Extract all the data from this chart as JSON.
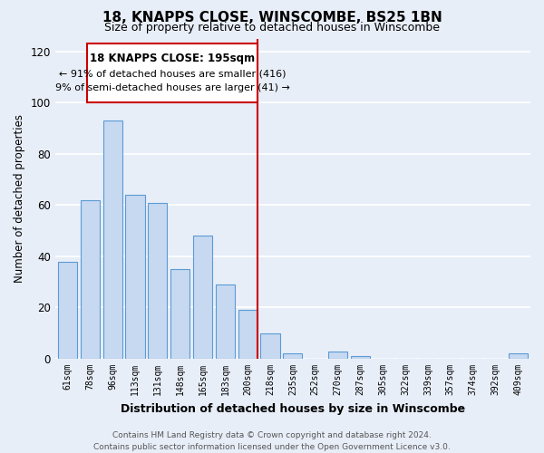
{
  "title": "18, KNAPPS CLOSE, WINSCOMBE, BS25 1BN",
  "subtitle": "Size of property relative to detached houses in Winscombe",
  "xlabel": "Distribution of detached houses by size in Winscombe",
  "ylabel": "Number of detached properties",
  "bar_labels": [
    "61sqm",
    "78sqm",
    "96sqm",
    "113sqm",
    "131sqm",
    "148sqm",
    "165sqm",
    "183sqm",
    "200sqm",
    "218sqm",
    "235sqm",
    "252sqm",
    "270sqm",
    "287sqm",
    "305sqm",
    "322sqm",
    "339sqm",
    "357sqm",
    "374sqm",
    "392sqm",
    "409sqm"
  ],
  "bar_values": [
    38,
    62,
    93,
    64,
    61,
    35,
    48,
    29,
    19,
    10,
    2,
    0,
    3,
    1,
    0,
    0,
    0,
    0,
    0,
    0,
    2
  ],
  "bar_color": "#c6d9f0",
  "bar_edge_color": "#5b9bd5",
  "ref_line_index": 8,
  "annotation_title": "18 KNAPPS CLOSE: 195sqm",
  "annotation_line1": "← 91% of detached houses are smaller (416)",
  "annotation_line2": "9% of semi-detached houses are larger (41) →",
  "annotation_box_color": "#ffffff",
  "annotation_box_edge": "#cc0000",
  "ref_line_color": "#cc0000",
  "ylim": [
    0,
    125
  ],
  "yticks": [
    0,
    20,
    40,
    60,
    80,
    100,
    120
  ],
  "footer_line1": "Contains HM Land Registry data © Crown copyright and database right 2024.",
  "footer_line2": "Contains public sector information licensed under the Open Government Licence v3.0.",
  "bg_color": "#e8eef8"
}
